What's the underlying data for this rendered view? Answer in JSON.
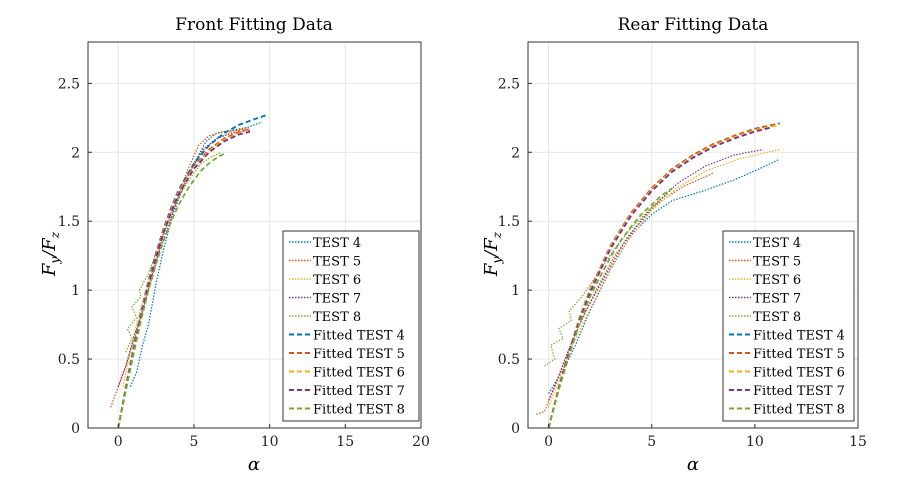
{
  "chart_data": [
    {
      "type": "line",
      "title": "Front Fitting Data",
      "xlabel": "α",
      "ylabel_main": "F",
      "ylabel_sub_y": "y",
      "ylabel_slash": "/",
      "ylabel_sub_z": "z",
      "xlim": [
        -2,
        20
      ],
      "ylim": [
        0,
        2.8
      ],
      "xticks": [
        0,
        5,
        10,
        15,
        20
      ],
      "yticks": [
        0,
        0.5,
        1,
        1.5,
        2,
        2.5
      ],
      "xtick_labels": [
        "0",
        "5",
        "10",
        "15",
        "20"
      ],
      "ytick_labels": [
        "0",
        "0.5",
        "1",
        "1.5",
        "2",
        "2.5"
      ],
      "grid": true,
      "legend_position": "bottom-right",
      "series": [
        {
          "name": "TEST 4",
          "style": "dotted",
          "color": "#0072BD",
          "x": [
            0.8,
            1.2,
            1.5,
            1.6,
            2.0,
            2.5,
            3.0,
            3.6,
            4.3,
            5.0,
            5.8,
            6.5,
            7.5,
            8.5,
            9.5
          ],
          "y": [
            0.3,
            0.4,
            0.55,
            0.6,
            0.75,
            1.05,
            1.3,
            1.55,
            1.75,
            1.92,
            2.08,
            2.14,
            2.16,
            2.18,
            2.22
          ]
        },
        {
          "name": "TEST 5",
          "style": "dotted",
          "color": "#D95319",
          "x": [
            -0.5,
            0.0,
            0.5,
            1.0,
            1.5,
            2.0,
            2.5,
            3.0,
            3.7,
            4.5,
            5.3,
            6.0,
            7.0,
            8.0,
            8.7
          ],
          "y": [
            0.15,
            0.3,
            0.45,
            0.62,
            0.8,
            1.0,
            1.2,
            1.42,
            1.6,
            1.85,
            2.05,
            2.12,
            2.15,
            2.16,
            2.17
          ]
        },
        {
          "name": "TEST 6",
          "style": "dotted",
          "color": "#EDB120",
          "x": [
            0.3,
            0.8,
            1.3,
            2.0,
            2.8,
            3.6,
            4.5,
            5.5,
            6.5,
            7.5,
            8.5
          ],
          "y": [
            0.3,
            0.55,
            0.8,
            1.05,
            1.35,
            1.6,
            1.82,
            2.0,
            2.1,
            2.15,
            2.18
          ]
        },
        {
          "name": "TEST 7",
          "style": "dotted",
          "color": "#7E2F8E",
          "x": [
            0.0,
            0.5,
            1.0,
            1.6,
            2.2,
            3.0,
            3.8,
            4.7,
            5.6,
            6.5,
            7.5,
            8.7
          ],
          "y": [
            0.3,
            0.45,
            0.65,
            0.85,
            1.1,
            1.38,
            1.62,
            1.85,
            2.02,
            2.1,
            2.14,
            2.16
          ]
        },
        {
          "name": "TEST 8",
          "style": "dotted",
          "color": "#77AC30",
          "x": [
            0.5,
            0.9,
            0.6,
            1.2,
            0.9,
            1.5,
            1.4,
            2.0,
            2.6,
            3.3,
            4.0,
            4.8,
            5.5,
            6.2,
            6.8
          ],
          "y": [
            0.55,
            0.65,
            0.72,
            0.8,
            0.88,
            0.95,
            1.0,
            1.12,
            1.3,
            1.5,
            1.68,
            1.82,
            1.92,
            1.97,
            2.0
          ]
        },
        {
          "name": "Fitted TEST 4",
          "style": "dashed",
          "color": "#0072BD",
          "x": [
            0,
            0.5,
            1,
            1.5,
            2,
            2.5,
            3,
            3.5,
            4,
            5,
            6,
            7,
            8,
            9,
            9.8
          ],
          "y": [
            0,
            0.3,
            0.58,
            0.84,
            1.07,
            1.27,
            1.45,
            1.6,
            1.73,
            1.92,
            2.05,
            2.14,
            2.2,
            2.24,
            2.27
          ]
        },
        {
          "name": "Fitted TEST 5",
          "style": "dashed",
          "color": "#D95319",
          "x": [
            0,
            0.5,
            1,
            1.5,
            2,
            2.5,
            3,
            3.5,
            4,
            5,
            6,
            7,
            8,
            8.7
          ],
          "y": [
            0,
            0.29,
            0.57,
            0.83,
            1.06,
            1.26,
            1.44,
            1.59,
            1.72,
            1.9,
            2.02,
            2.1,
            2.15,
            2.17
          ]
        },
        {
          "name": "Fitted TEST 6",
          "style": "dashed",
          "color": "#EDB120",
          "x": [
            0,
            0.5,
            1,
            1.5,
            2,
            2.5,
            3,
            3.5,
            4,
            5,
            6,
            7,
            8,
            8.5
          ],
          "y": [
            0,
            0.28,
            0.56,
            0.82,
            1.05,
            1.25,
            1.43,
            1.58,
            1.71,
            1.89,
            2.01,
            2.09,
            2.14,
            2.16
          ]
        },
        {
          "name": "Fitted TEST 7",
          "style": "dashed",
          "color": "#7E2F8E",
          "x": [
            0,
            0.5,
            1,
            1.5,
            2,
            2.5,
            3,
            3.5,
            4,
            5,
            6,
            7,
            8,
            8.7
          ],
          "y": [
            0,
            0.28,
            0.55,
            0.81,
            1.04,
            1.24,
            1.42,
            1.57,
            1.7,
            1.88,
            2.0,
            2.08,
            2.13,
            2.15
          ]
        },
        {
          "name": "Fitted TEST 8",
          "style": "dashed",
          "color": "#77AC30",
          "x": [
            0,
            0.5,
            1,
            1.5,
            2,
            2.5,
            3,
            3.5,
            4,
            4.5,
            5,
            5.5,
            6,
            6.5,
            7
          ],
          "y": [
            0,
            0.27,
            0.53,
            0.78,
            1.0,
            1.19,
            1.36,
            1.5,
            1.62,
            1.72,
            1.8,
            1.87,
            1.92,
            1.96,
            1.99
          ]
        }
      ]
    },
    {
      "type": "line",
      "title": "Rear Fitting Data",
      "xlabel": "α",
      "ylabel_main": "F",
      "ylabel_sub_y": "y",
      "ylabel_slash": "/",
      "ylabel_sub_z": "z",
      "xlim": [
        -1,
        15
      ],
      "ylim": [
        0,
        2.8
      ],
      "xticks": [
        0,
        5,
        10,
        15
      ],
      "yticks": [
        0,
        0.5,
        1,
        1.5,
        2,
        2.5
      ],
      "xtick_labels": [
        "0",
        "5",
        "10",
        "15"
      ],
      "ytick_labels": [
        "0",
        "0.5",
        "1",
        "1.5",
        "2",
        "2.5"
      ],
      "grid": true,
      "legend_position": "bottom-right",
      "series": [
        {
          "name": "TEST 4",
          "style": "dotted",
          "color": "#0072BD",
          "x": [
            0.0,
            0.4,
            0.8,
            1.3,
            2.0,
            3.0,
            4.0,
            5.0,
            6.0,
            7.5,
            9.0,
            10.5,
            11.2
          ],
          "y": [
            0.25,
            0.35,
            0.45,
            0.6,
            0.85,
            1.15,
            1.4,
            1.55,
            1.65,
            1.72,
            1.8,
            1.9,
            1.95
          ]
        },
        {
          "name": "TEST 5",
          "style": "dotted",
          "color": "#D95319",
          "x": [
            -0.6,
            -0.2,
            0.3,
            0.8,
            1.5,
            2.3,
            3.2,
            4.2,
            5.2,
            6.5,
            8.0
          ],
          "y": [
            0.1,
            0.12,
            0.3,
            0.5,
            0.75,
            1.0,
            1.25,
            1.45,
            1.62,
            1.75,
            1.85
          ]
        },
        {
          "name": "TEST 6",
          "style": "dotted",
          "color": "#EDB120",
          "x": [
            0.0,
            0.5,
            1.0,
            1.8,
            2.8,
            3.8,
            5.0,
            6.3,
            7.7,
            9.2,
            10.6,
            11.2
          ],
          "y": [
            0.15,
            0.35,
            0.55,
            0.8,
            1.1,
            1.35,
            1.58,
            1.75,
            1.87,
            1.95,
            2.0,
            2.02
          ]
        },
        {
          "name": "TEST 7",
          "style": "dotted",
          "color": "#7E2F8E",
          "x": [
            0.0,
            0.5,
            1.0,
            1.8,
            2.8,
            3.8,
            5.0,
            6.3,
            7.6,
            9.0,
            10.4
          ],
          "y": [
            0.2,
            0.38,
            0.58,
            0.85,
            1.12,
            1.38,
            1.6,
            1.78,
            1.9,
            1.98,
            2.02
          ]
        },
        {
          "name": "TEST 8",
          "style": "dotted",
          "color": "#77AC30",
          "x": [
            -0.2,
            0.3,
            0.1,
            0.7,
            0.5,
            1.1,
            1.0,
            1.6,
            2.3,
            3.1,
            4.0,
            5.0,
            5.8
          ],
          "y": [
            0.45,
            0.5,
            0.6,
            0.65,
            0.72,
            0.78,
            0.85,
            0.95,
            1.1,
            1.28,
            1.45,
            1.6,
            1.7
          ]
        },
        {
          "name": "Fitted TEST 4",
          "style": "dashed",
          "color": "#0072BD",
          "x": [
            0,
            0.5,
            1,
            1.5,
            2,
            3,
            4,
            5,
            6,
            7,
            8,
            9,
            10,
            11.2
          ],
          "y": [
            0,
            0.3,
            0.56,
            0.8,
            1.0,
            1.32,
            1.56,
            1.74,
            1.88,
            1.98,
            2.06,
            2.12,
            2.17,
            2.21
          ]
        },
        {
          "name": "Fitted TEST 5",
          "style": "dashed",
          "color": "#D95319",
          "x": [
            0,
            0.5,
            1,
            1.5,
            2,
            3,
            4,
            5,
            6,
            7,
            8,
            9,
            10,
            11.2
          ],
          "y": [
            0,
            0.3,
            0.56,
            0.8,
            1.0,
            1.32,
            1.56,
            1.74,
            1.88,
            1.98,
            2.06,
            2.12,
            2.17,
            2.21
          ]
        },
        {
          "name": "Fitted TEST 6",
          "style": "dashed",
          "color": "#EDB120",
          "x": [
            0,
            0.5,
            1,
            1.5,
            2,
            3,
            4,
            5,
            6,
            7,
            8,
            9,
            10,
            11.2
          ],
          "y": [
            0,
            0.29,
            0.55,
            0.79,
            0.99,
            1.31,
            1.55,
            1.73,
            1.87,
            1.97,
            2.05,
            2.11,
            2.16,
            2.2
          ]
        },
        {
          "name": "Fitted TEST 7",
          "style": "dashed",
          "color": "#7E2F8E",
          "x": [
            0,
            0.5,
            1,
            1.5,
            2,
            3,
            4,
            5,
            6,
            7,
            8,
            9,
            10,
            10.8
          ],
          "y": [
            0,
            0.29,
            0.55,
            0.78,
            0.98,
            1.3,
            1.54,
            1.72,
            1.86,
            1.96,
            2.04,
            2.1,
            2.15,
            2.18
          ]
        },
        {
          "name": "Fitted TEST 8",
          "style": "dashed",
          "color": "#77AC30",
          "x": [
            0,
            0.5,
            1,
            1.5,
            2,
            2.5,
            3,
            3.5,
            4,
            4.5,
            5,
            5.5,
            6
          ],
          "y": [
            0,
            0.28,
            0.53,
            0.76,
            0.95,
            1.1,
            1.24,
            1.36,
            1.46,
            1.55,
            1.62,
            1.69,
            1.74
          ]
        }
      ]
    }
  ]
}
